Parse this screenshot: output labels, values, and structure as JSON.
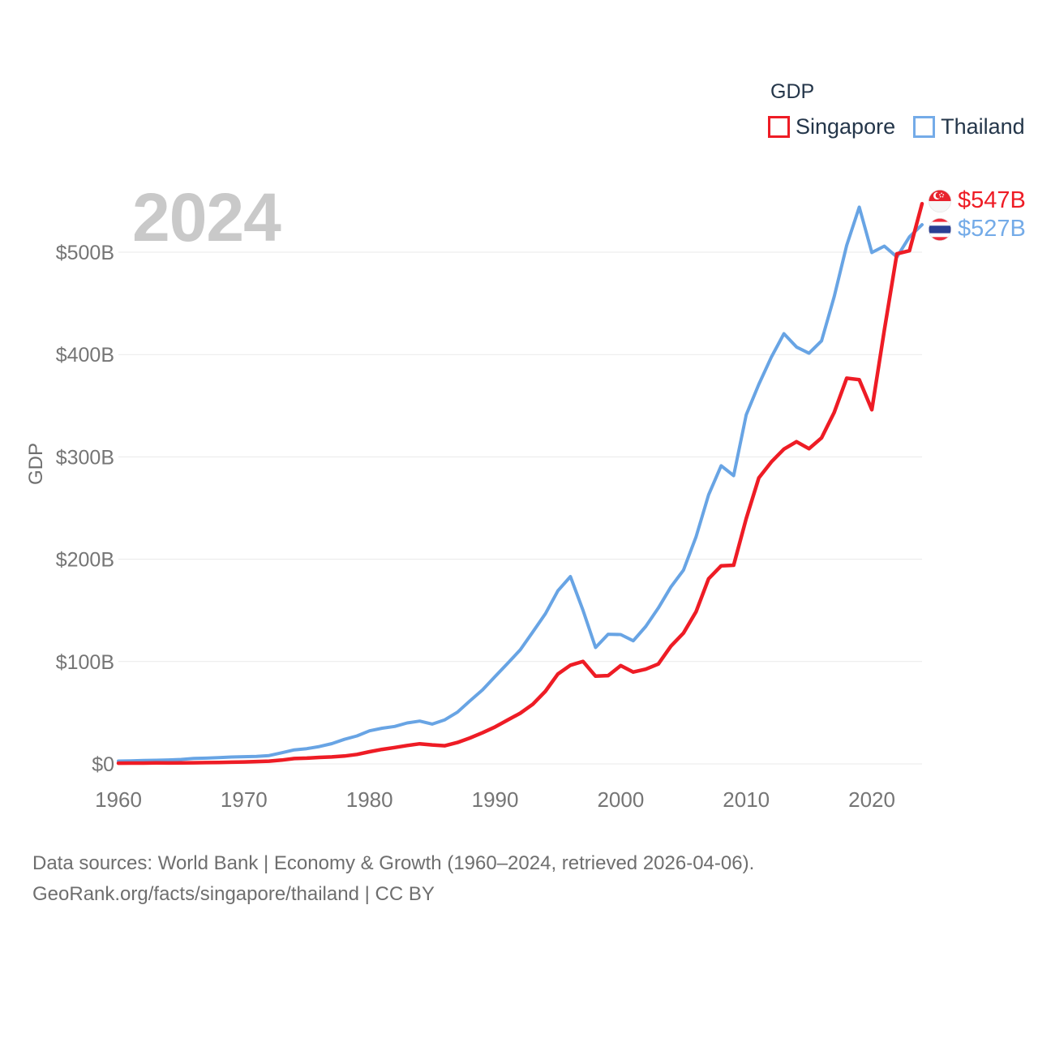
{
  "legend": {
    "title": "GDP",
    "items": [
      {
        "label": "Singapore",
        "color": "#ee1c25"
      },
      {
        "label": "Thailand",
        "color": "#74abe8"
      }
    ]
  },
  "watermark": "2024",
  "axis": {
    "y_title": "GDP",
    "y_ticks": [
      "$0",
      "$100B",
      "$200B",
      "$300B",
      "$400B",
      "$500B"
    ],
    "x_ticks": [
      "1960",
      "1970",
      "1980",
      "1990",
      "2000",
      "2010",
      "2020"
    ]
  },
  "end_labels": [
    {
      "flag": "singapore-flag",
      "value": "$547B",
      "color": "#ee1c25"
    },
    {
      "flag": "thailand-flag",
      "value": "$527B",
      "color": "#74abe8"
    }
  ],
  "footer": {
    "line1": "Data sources: World Bank | Economy & Growth (1960–2024, retrieved 2026-04-06).",
    "line2": "GeoRank.org/facts/singapore/thailand | CC BY"
  },
  "chart_data": {
    "type": "line",
    "title": "GDP",
    "xlabel": "",
    "ylabel": "GDP",
    "ylim": [
      0,
      560
    ],
    "xlim": [
      1960,
      2024
    ],
    "grid": "horizontal",
    "legend_position": "top-right",
    "x": [
      1960,
      1961,
      1962,
      1963,
      1964,
      1965,
      1966,
      1967,
      1968,
      1969,
      1970,
      1971,
      1972,
      1973,
      1974,
      1975,
      1976,
      1977,
      1978,
      1979,
      1980,
      1981,
      1982,
      1983,
      1984,
      1985,
      1986,
      1987,
      1988,
      1989,
      1990,
      1991,
      1992,
      1993,
      1994,
      1995,
      1996,
      1997,
      1998,
      1999,
      2000,
      2001,
      2002,
      2003,
      2004,
      2005,
      2006,
      2007,
      2008,
      2009,
      2010,
      2011,
      2012,
      2013,
      2014,
      2015,
      2016,
      2017,
      2018,
      2019,
      2020,
      2021,
      2022,
      2023,
      2024
    ],
    "series": [
      {
        "name": "Thailand",
        "color": "#68a4e4",
        "unit": "billions USD",
        "values": [
          2.76,
          3.03,
          3.31,
          3.54,
          3.89,
          4.39,
          5.28,
          5.64,
          6.08,
          6.7,
          7.09,
          7.38,
          8.18,
          10.84,
          13.7,
          14.88,
          16.99,
          19.78,
          24.01,
          27.37,
          32.35,
          34.85,
          36.59,
          40.04,
          41.8,
          38.9,
          43.1,
          50.54,
          61.67,
          72.25,
          85.34,
          98.24,
          111.45,
          128.89,
          146.68,
          169.28,
          183.04,
          150.18,
          113.68,
          126.67,
          126.39,
          120.3,
          134.3,
          152.28,
          172.9,
          189.32,
          221.76,
          262.94,
          291.38,
          281.71,
          341.11,
          370.82,
          397.56,
          420.33,
          407.34,
          401.3,
          413.43,
          456.36,
          506.75,
          544.08,
          499.68,
          505.95,
          495.34,
          514.95,
          526.9
        ]
      },
      {
        "name": "Singapore",
        "color": "#ee1c25",
        "unit": "billions USD",
        "values": [
          0.7,
          0.76,
          0.83,
          0.92,
          0.88,
          0.97,
          1.1,
          1.24,
          1.43,
          1.66,
          1.92,
          2.26,
          2.72,
          3.69,
          5.22,
          5.63,
          6.33,
          6.79,
          7.66,
          9.3,
          11.9,
          14.21,
          15.98,
          18.0,
          19.67,
          18.55,
          17.71,
          20.9,
          25.37,
          30.39,
          36.15,
          42.84,
          49.52,
          58.29,
          70.88,
          87.89,
          96.4,
          100.16,
          85.71,
          86.29,
          96.07,
          89.79,
          92.54,
          97.65,
          115.03,
          127.81,
          148.63,
          180.94,
          193.61,
          194.15,
          239.81,
          279.36,
          295.09,
          307.58,
          314.85,
          308.0,
          318.65,
          343.26,
          376.89,
          375.47,
          346.0,
          423.8,
          498.46,
          501.43,
          547.39
        ]
      }
    ]
  }
}
